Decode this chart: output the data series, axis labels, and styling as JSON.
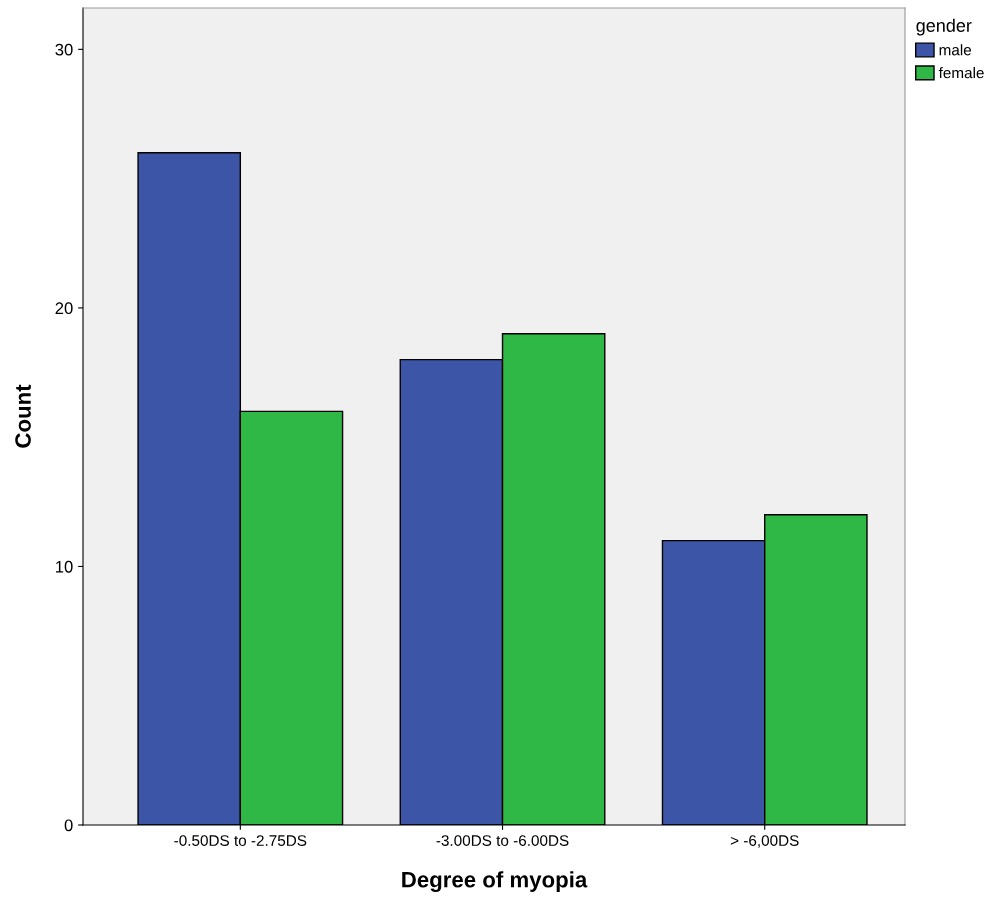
{
  "chart_data": {
    "type": "bar",
    "xlabel": "Degree of myopia",
    "ylabel": "Count",
    "legend_title": "gender",
    "categories": [
      "-0.50DS to -2.75DS",
      "-3.00DS to -6.00DS",
      "> -6,00DS"
    ],
    "series": [
      {
        "name": "male",
        "color": "#3d55a6",
        "values": [
          26,
          18,
          11
        ]
      },
      {
        "name": "female",
        "color": "#30b846",
        "values": [
          16,
          19,
          12
        ]
      }
    ],
    "ylim": [
      0,
      31.6
    ],
    "yticks": [
      0,
      10,
      20,
      30
    ],
    "grid": false,
    "legend": "top right"
  }
}
